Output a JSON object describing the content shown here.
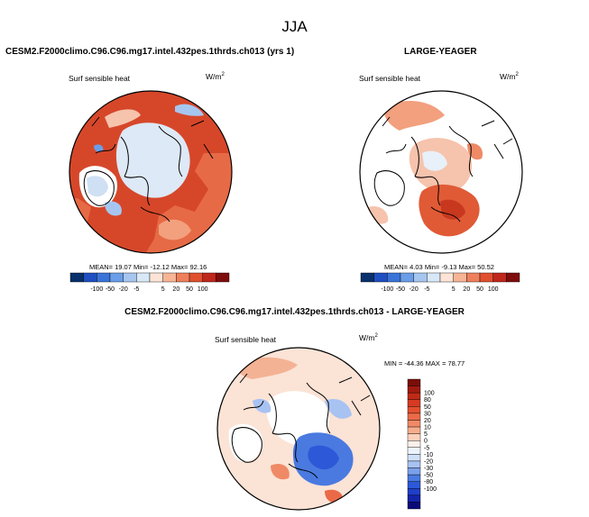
{
  "main_title": "JJA",
  "colors": {
    "scale_12": [
      "#08306b",
      "#1f4fc0",
      "#3a74d8",
      "#6a9ee8",
      "#a6c6f0",
      "#d8e8f8",
      "#fde4d6",
      "#f7b596",
      "#ee7f5c",
      "#e0502f",
      "#c0271c",
      "#7f0d0d"
    ],
    "scale_19": [
      "#0a0a7a",
      "#1424a8",
      "#1f3fc8",
      "#2d58d8",
      "#4a7ae0",
      "#7aa0ea",
      "#a8c2f2",
      "#cfe0f8",
      "#ecf3fc",
      "#fdf0ea",
      "#fbd0bc",
      "#f6ad8e",
      "#f08a66",
      "#ea6a48",
      "#e25030",
      "#d63a22",
      "#c02a18",
      "#a01a10",
      "#7a0d08"
    ]
  },
  "panels": [
    {
      "title": "CESM2.F2000climo.C96.C96.mg17.intel.432pes.1thrds.ch013 (yrs 1)",
      "variable": "Surf sensible heat",
      "units_base": "W/m",
      "units_exp": "2",
      "stats": "MEAN=  19.07  Min=  -12.12  Max=  92.16",
      "chart_data": {
        "type": "heatmap",
        "projection": "north polar stereographic",
        "colorbar_levels": [
          "-100",
          "-50",
          "-20",
          "-5",
          "5",
          "20",
          "50",
          "100"
        ],
        "mean": 19.07,
        "min": -12.12,
        "max": 92.16
      }
    },
    {
      "title": "LARGE-YEAGER",
      "variable": "Surf sensible heat",
      "units_base": "W/m",
      "units_exp": "2",
      "stats": "MEAN=  4.03  Min=  -9.13  Max=  50.52",
      "chart_data": {
        "type": "heatmap",
        "projection": "north polar stereographic",
        "colorbar_levels": [
          "-100",
          "-50",
          "-20",
          "-5",
          "5",
          "20",
          "50",
          "100"
        ],
        "mean": 4.03,
        "min": -9.13,
        "max": 50.52
      }
    },
    {
      "title": "CESM2.F2000climo.C96.C96.mg17.intel.432pes.1thrds.ch013 - LARGE-YEAGER",
      "variable": "Surf sensible heat",
      "units_base": "W/m",
      "units_exp": "2",
      "stats": "MIN = -44.36 MAX = 78.77",
      "chart_data": {
        "type": "heatmap",
        "projection": "north polar stereographic",
        "colorbar_levels": [
          "100",
          "80",
          "50",
          "30",
          "20",
          "10",
          "5",
          "0",
          "-5",
          "-10",
          "-20",
          "-30",
          "-50",
          "-80",
          "-100"
        ],
        "min": -44.36,
        "max": 78.77
      }
    }
  ]
}
